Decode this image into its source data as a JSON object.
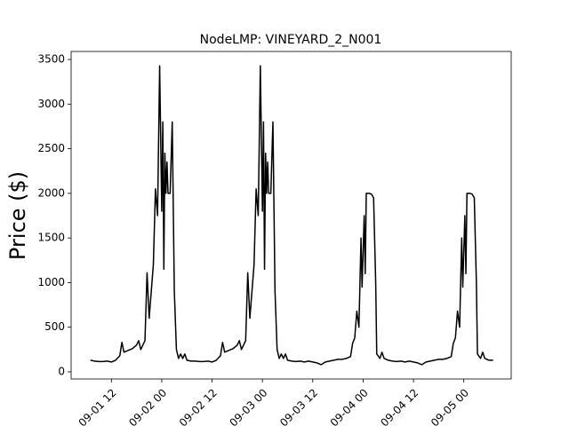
{
  "chart_data": {
    "type": "line",
    "title": "NodeLMP: VINEYARD_2_N001",
    "y_label": "Price ($)",
    "x": [
      "09-01 07:00",
      "09-01 08:00",
      "09-01 09:00",
      "09-01 10:00",
      "09-01 11:00",
      "09-01 12:00",
      "09-01 13:00",
      "09-01 14:00",
      "09-01 14:30",
      "09-01 15:00",
      "09-01 16:00",
      "09-01 17:00",
      "09-01 18:00",
      "09-01 18:30",
      "09-01 19:00",
      "09-01 20:00",
      "09-01 20:30",
      "09-01 21:00",
      "09-01 21:30",
      "09-01 22:00",
      "09-01 22:30",
      "09-01 23:00",
      "09-01 23:30",
      "09-02 00:00",
      "09-02 00:15",
      "09-02 00:30",
      "09-02 00:45",
      "09-02 01:00",
      "09-02 01:15",
      "09-02 01:30",
      "09-02 02:00",
      "09-02 02:30",
      "09-02 03:00",
      "09-02 03:30",
      "09-02 04:00",
      "09-02 04:30",
      "09-02 05:00",
      "09-02 05:30",
      "09-02 06:00",
      "09-02 07:00",
      "09-02 08:00",
      "09-02 09:00",
      "09-02 10:00",
      "09-02 11:00",
      "09-02 12:00",
      "09-02 13:00",
      "09-02 14:00",
      "09-02 14:30",
      "09-02 15:00",
      "09-02 16:00",
      "09-02 17:00",
      "09-02 18:00",
      "09-02 18:30",
      "09-02 19:00",
      "09-02 20:00",
      "09-02 20:30",
      "09-02 21:00",
      "09-02 21:30",
      "09-02 22:00",
      "09-02 22:30",
      "09-02 23:00",
      "09-02 23:30",
      "09-03 00:00",
      "09-03 00:15",
      "09-03 00:30",
      "09-03 00:45",
      "09-03 01:00",
      "09-03 01:15",
      "09-03 01:30",
      "09-03 02:00",
      "09-03 02:30",
      "09-03 03:00",
      "09-03 03:30",
      "09-03 04:00",
      "09-03 04:30",
      "09-03 05:00",
      "09-03 05:30",
      "09-03 06:00",
      "09-03 07:00",
      "09-03 08:00",
      "09-03 09:00",
      "09-03 10:00",
      "09-03 11:00",
      "09-03 12:00",
      "09-03 13:00",
      "09-03 14:00",
      "09-03 15:00",
      "09-03 16:00",
      "09-03 17:00",
      "09-03 18:00",
      "09-03 19:00",
      "09-03 20:00",
      "09-03 21:00",
      "09-03 21:30",
      "09-03 22:00",
      "09-03 22:30",
      "09-03 23:00",
      "09-03 23:30",
      "09-03 23:45",
      "09-04 00:15",
      "09-04 00:30",
      "09-04 00:45",
      "09-04 01:30",
      "09-04 02:00",
      "09-04 02:30",
      "09-04 03:00",
      "09-04 03:15",
      "09-04 04:00",
      "09-04 04:30",
      "09-04 05:00",
      "09-04 06:00",
      "09-04 07:00",
      "09-04 08:00",
      "09-04 09:00",
      "09-04 10:00",
      "09-04 11:00",
      "09-04 12:00",
      "09-04 13:00",
      "09-04 14:00",
      "09-04 15:00",
      "09-04 16:00",
      "09-04 17:00",
      "09-04 18:00",
      "09-04 19:00",
      "09-04 20:00",
      "09-04 21:00",
      "09-04 21:30",
      "09-04 22:00",
      "09-04 22:30",
      "09-04 23:00",
      "09-04 23:30",
      "09-04 23:45",
      "09-05 00:15",
      "09-05 00:30",
      "09-05 00:45",
      "09-05 01:30",
      "09-05 02:00",
      "09-05 02:30",
      "09-05 03:00",
      "09-05 03:15",
      "09-05 04:00",
      "09-05 04:30",
      "09-05 05:00",
      "09-05 06:00",
      "09-05 07:00"
    ],
    "series": [
      {
        "color": "#000000",
        "values": [
          130,
          120,
          115,
          115,
          120,
          110,
          130,
          180,
          330,
          220,
          240,
          260,
          300,
          350,
          250,
          350,
          1110,
          600,
          900,
          1200,
          2050,
          1750,
          3430,
          1800,
          2800,
          1150,
          2450,
          2000,
          2350,
          2000,
          2000,
          2800,
          900,
          250,
          150,
          200,
          150,
          200,
          130,
          120,
          120,
          115,
          115,
          120,
          110,
          130,
          180,
          330,
          220,
          240,
          260,
          300,
          350,
          250,
          350,
          1110,
          600,
          900,
          1200,
          2050,
          1750,
          3430,
          1800,
          2800,
          1150,
          2450,
          2000,
          2350,
          2000,
          2000,
          2800,
          900,
          250,
          150,
          200,
          150,
          200,
          130,
          120,
          115,
          120,
          110,
          120,
          110,
          100,
          80,
          110,
          120,
          130,
          140,
          140,
          150,
          170,
          320,
          380,
          680,
          500,
          1500,
          950,
          1750,
          1100,
          2000,
          2000,
          1990,
          1950,
          1000,
          200,
          150,
          220,
          150,
          130,
          120,
          115,
          120,
          110,
          120,
          110,
          100,
          80,
          110,
          120,
          130,
          140,
          140,
          150,
          170,
          320,
          380,
          680,
          500,
          1500,
          950,
          1750,
          1100,
          2000,
          2000,
          1990,
          1950,
          1000,
          200,
          150,
          220,
          150,
          130,
          130
        ]
      }
    ],
    "xlim": [
      "09-01 02:24",
      "09-05 11:18"
    ],
    "xticks": [
      {
        "value": "09-01 12:00",
        "label": "09-01 12"
      },
      {
        "value": "09-02 00:00",
        "label": "09-02 00"
      },
      {
        "value": "09-02 12:00",
        "label": "09-02 12"
      },
      {
        "value": "09-03 00:00",
        "label": "09-03 00"
      },
      {
        "value": "09-03 12:00",
        "label": "09-03 12"
      },
      {
        "value": "09-04 00:00",
        "label": "09-04 00"
      },
      {
        "value": "09-04 12:00",
        "label": "09-04 12"
      },
      {
        "value": "09-05 00:00",
        "label": "09-05 00"
      }
    ],
    "ylim": [
      -80,
      3590
    ],
    "yticks": [
      0,
      500,
      1000,
      1500,
      2000,
      2500,
      3000,
      3500
    ]
  }
}
